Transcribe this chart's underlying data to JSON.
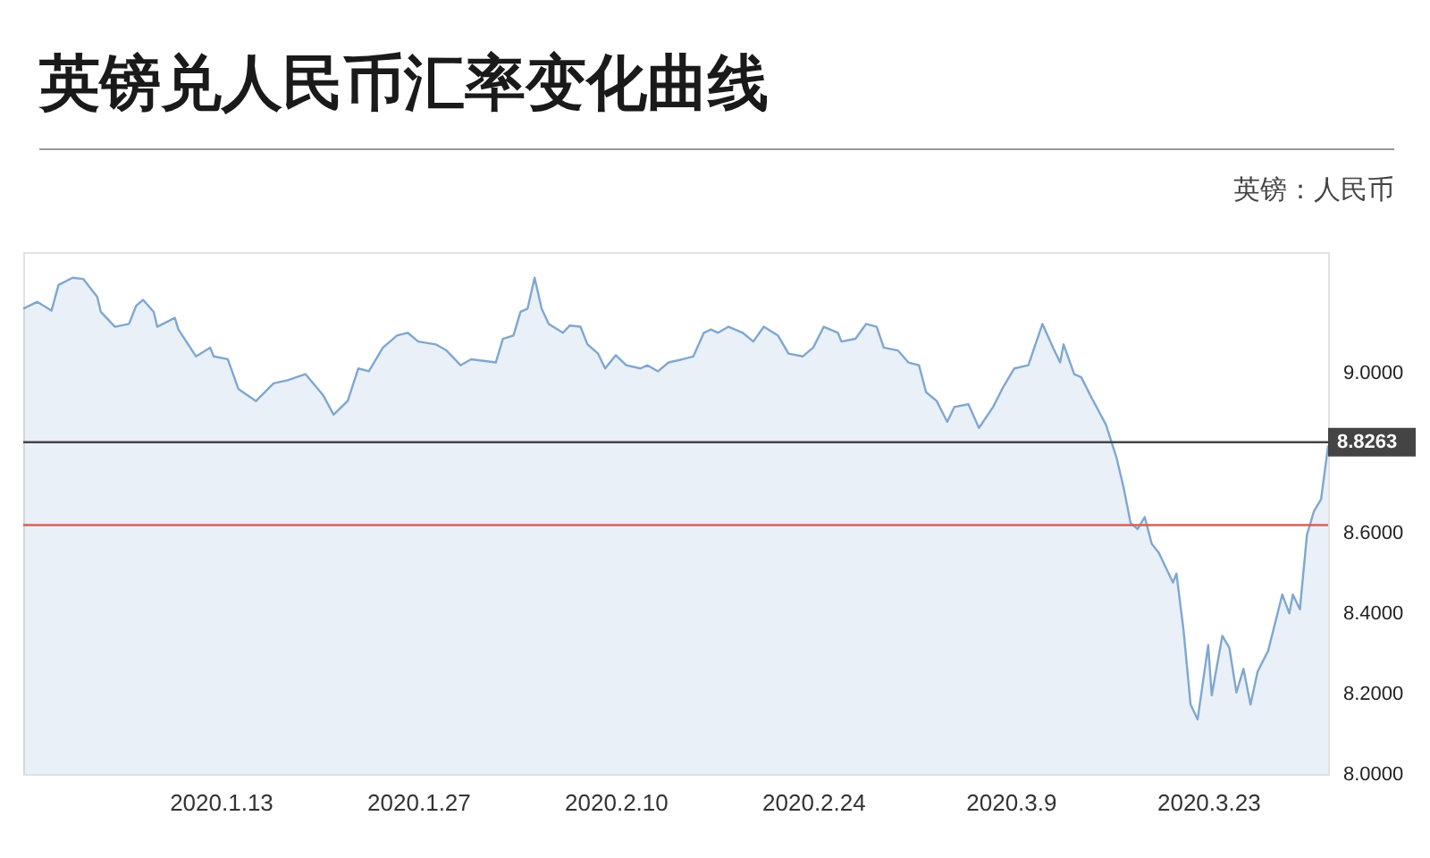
{
  "chart_data": {
    "type": "area",
    "title": "英镑兑人民币汇率变化曲线",
    "subtitle": "英镑：人民币",
    "x": [
      "2019-12-30",
      "2019-12-31",
      "2020-01-01",
      "2020-01-01T12:00",
      "2020-01-02T12:00",
      "2020-01-03T06:00",
      "2020-01-04T06:00",
      "2020-01-04T12:00",
      "2020-01-05T12:00",
      "2020-01-06T12:00",
      "2020-01-07",
      "2020-01-07T12:00",
      "2020-01-08T06:00",
      "2020-01-08T12:00",
      "2020-01-09T18:00",
      "2020-01-10",
      "2020-01-11T06:00",
      "2020-01-12T06:00",
      "2020-01-12T12:00",
      "2020-01-13T12:00",
      "2020-01-14T06:00",
      "2020-01-15T12:00",
      "2020-01-16T18:00",
      "2020-01-17T18:00",
      "2020-01-19",
      "2020-01-20T06:00",
      "2020-01-21",
      "2020-01-22",
      "2020-01-22T18:00",
      "2020-01-23T12:00",
      "2020-01-24T12:00",
      "2020-01-25T12:00",
      "2020-01-26T06:00",
      "2020-01-27",
      "2020-01-28T06:00",
      "2020-01-29",
      "2020-01-30",
      "2020-01-30T18:00",
      "2020-02-01T12:00",
      "2020-02-02",
      "2020-02-02T18:00",
      "2020-02-03T06:00",
      "2020-02-03T18:00",
      "2020-02-04T06:00",
      "2020-02-04T18:00",
      "2020-02-05T06:00",
      "2020-02-06T06:00",
      "2020-02-06T18:00",
      "2020-02-07T12:00",
      "2020-02-08",
      "2020-02-08T18:00",
      "2020-02-09T06:00",
      "2020-02-10",
      "2020-02-10T18:00",
      "2020-02-11T18:00",
      "2020-02-12T06:00",
      "2020-02-13",
      "2020-02-13T18:00",
      "2020-02-14T18:00",
      "2020-02-15T12:00",
      "2020-02-16T06:00",
      "2020-02-16T18:00",
      "2020-02-17T06:00",
      "2020-02-18",
      "2020-02-19",
      "2020-02-19T18:00",
      "2020-02-20T12:00",
      "2020-02-21T12:00",
      "2020-02-22T06:00",
      "2020-02-23T06:00",
      "2020-02-24",
      "2020-02-24T18:00",
      "2020-02-25T18:00",
      "2020-02-26",
      "2020-02-27",
      "2020-02-27T18:00",
      "2020-02-28T12:00",
      "2020-02-29",
      "2020-03-01",
      "2020-03-01T18:00",
      "2020-03-02T12:00",
      "2020-03-03",
      "2020-03-03T18:00",
      "2020-03-04T12:00",
      "2020-03-05",
      "2020-03-06",
      "2020-03-06T18:00",
      "2020-03-07T18:00",
      "2020-03-08T12:00",
      "2020-03-09T06:00",
      "2020-03-10T06:00",
      "2020-03-11T06:00",
      "2020-03-12",
      "2020-03-12T12:00",
      "2020-03-12T18:00",
      "2020-03-13T12:00",
      "2020-03-14",
      "2020-03-14T18:00",
      "2020-03-15T18:00",
      "2020-03-16T12:00",
      "2020-03-17",
      "2020-03-17T12:00",
      "2020-03-18",
      "2020-03-18T12:00",
      "2020-03-19",
      "2020-03-19T12:00",
      "2020-03-20T12:00",
      "2020-03-20T18:00",
      "2020-03-21T06:00",
      "2020-03-21T18:00",
      "2020-03-22T06:00",
      "2020-03-23",
      "2020-03-23T06:00",
      "2020-03-24",
      "2020-03-24T12:00",
      "2020-03-25",
      "2020-03-25T12:00",
      "2020-03-26",
      "2020-03-26T12:00",
      "2020-03-27T06:00",
      "2020-03-28T06:00",
      "2020-03-28T18:00",
      "2020-03-29",
      "2020-03-29T12:00",
      "2020-03-30",
      "2020-03-30T12:00",
      "2020-03-31",
      "2020-03-31T12:00"
    ],
    "series": [
      {
        "color": "#7fa7d0",
        "values": [
          9.159,
          9.176,
          9.154,
          9.218,
          9.236,
          9.233,
          9.188,
          9.151,
          9.114,
          9.121,
          9.166,
          9.181,
          9.151,
          9.114,
          9.136,
          9.107,
          9.04,
          9.062,
          9.04,
          9.033,
          8.959,
          8.929,
          8.973,
          8.981,
          8.996,
          8.944,
          8.895,
          8.929,
          9.01,
          9.003,
          9.062,
          9.092,
          9.099,
          9.077,
          9.07,
          9.055,
          9.018,
          9.033,
          9.025,
          9.084,
          9.092,
          9.151,
          9.159,
          9.236,
          9.159,
          9.121,
          9.099,
          9.117,
          9.114,
          9.07,
          9.047,
          9.01,
          9.043,
          9.018,
          9.01,
          9.018,
          9.003,
          9.025,
          9.033,
          9.04,
          9.099,
          9.107,
          9.099,
          9.114,
          9.099,
          9.077,
          9.114,
          9.092,
          9.047,
          9.04,
          9.062,
          9.114,
          9.099,
          9.077,
          9.084,
          9.121,
          9.114,
          9.062,
          9.055,
          9.025,
          9.018,
          8.951,
          8.929,
          8.877,
          8.914,
          8.921,
          8.862,
          8.914,
          8.966,
          9.01,
          9.018,
          9.121,
          9.062,
          9.025,
          9.07,
          8.996,
          8.988,
          8.936,
          8.87,
          8.788,
          8.714,
          8.625,
          8.61,
          8.64,
          8.573,
          8.551,
          8.477,
          8.499,
          8.359,
          8.173,
          8.136,
          8.321,
          8.196,
          8.344,
          8.314,
          8.203,
          8.262,
          8.173,
          8.255,
          8.307,
          8.447,
          8.4,
          8.447,
          8.41,
          8.596,
          8.655,
          8.684,
          8.818
        ]
      }
    ],
    "xlim": [
      "2019-12-30",
      "2020-03-31T12:00"
    ],
    "xticks": [
      {
        "value": "2020-01-13",
        "label": "2020.1.13"
      },
      {
        "value": "2020-01-27",
        "label": "2020.1.27"
      },
      {
        "value": "2020-02-10",
        "label": "2020.2.10"
      },
      {
        "value": "2020-02-24",
        "label": "2020.2.24"
      },
      {
        "value": "2020-03-09",
        "label": "2020.3.9"
      },
      {
        "value": "2020-03-23",
        "label": "2020.3.23"
      }
    ],
    "ylim": [
      8,
      9.3
    ],
    "yticks": [
      {
        "value": 8,
        "label": "8.0000"
      },
      {
        "value": 8.2,
        "label": "8.2000"
      },
      {
        "value": 8.4,
        "label": "8.4000"
      },
      {
        "value": 8.6,
        "label": "8.6000"
      },
      {
        "value": 9,
        "label": "9.0000"
      }
    ],
    "ref_lines": [
      {
        "axis": "y",
        "value": 8.8263,
        "label": "8.8263",
        "color": "#444444"
      },
      {
        "axis": "y",
        "value": 8.62,
        "color": "#d9605a"
      }
    ]
  }
}
